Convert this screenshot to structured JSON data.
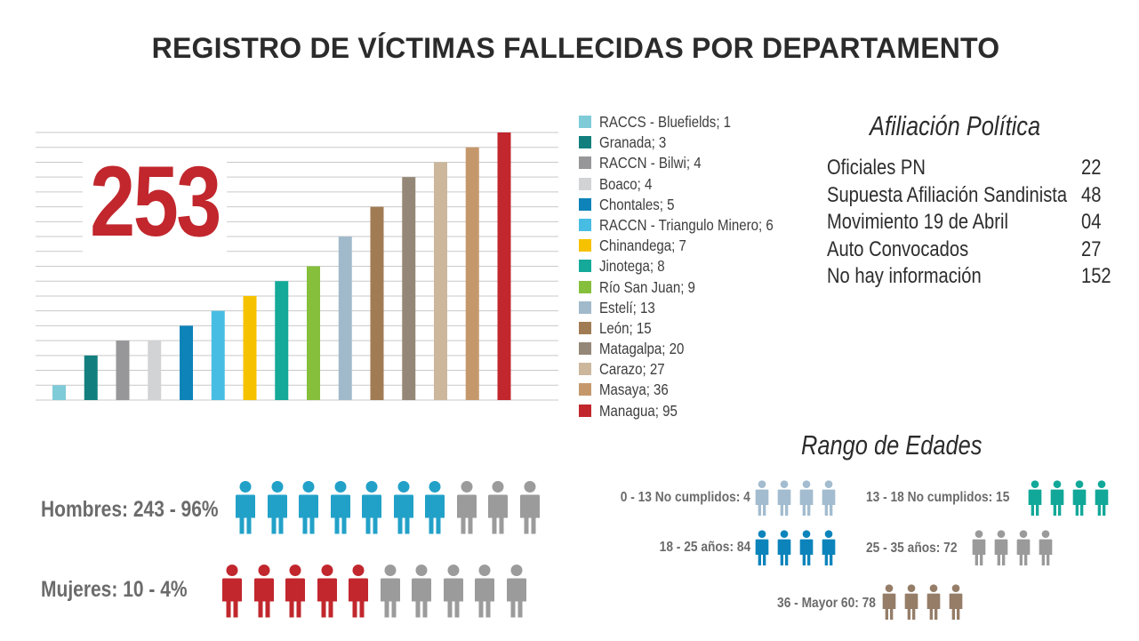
{
  "title": "REGISTRO DE VÍCTIMAS FALLECIDAS POR DEPARTAMENTO",
  "total": "253",
  "chart_data": {
    "type": "bar",
    "categories": [
      "RACCS - Bluefields",
      "Granada",
      "RACCN - Bilwi",
      "Boaco",
      "Chontales",
      "RACCN - Triangulo Minero",
      "Chinandega",
      "Jinotega",
      "Río San Juan",
      "Estelí",
      "León",
      "Matagalpa",
      "Carazo",
      "Masaya",
      "Managua"
    ],
    "values": [
      1,
      3,
      4,
      4,
      5,
      6,
      7,
      8,
      9,
      13,
      15,
      20,
      27,
      36,
      95
    ],
    "colors": [
      "#7fcbd8",
      "#127f7e",
      "#97979a",
      "#d2d3d5",
      "#0d83b9",
      "#48bde3",
      "#f6c200",
      "#14a999",
      "#86bf3c",
      "#a1bacb",
      "#a17b53",
      "#958777",
      "#ccb79d",
      "#c5986b",
      "#c1272d"
    ],
    "legend": [
      "RACCS - Bluefields; 1",
      "Granada; 3",
      "RACCN - Bilwi; 4",
      "Boaco; 4",
      "Chontales; 5",
      "RACCN - Triangulo Minero; 6",
      "Chinandega; 7",
      "Jinotega; 8",
      "Río San Juan; 9",
      "Estelí; 13",
      "León; 15",
      "Matagalpa; 20",
      "Carazo; 27",
      "Masaya; 36",
      "Managua; 95"
    ],
    "legend_position": "right",
    "grid": true,
    "xlabel": "",
    "ylabel": ""
  },
  "affiliation": {
    "title": "Afiliación Política",
    "rows": [
      {
        "name": "Oficiales PN",
        "value": "22"
      },
      {
        "name": "Supuesta Afiliación Sandinista",
        "value": "48"
      },
      {
        "name": "Movimiento 19 de Abril",
        "value": "04"
      },
      {
        "name": "Auto Convocados",
        "value": "27"
      },
      {
        "name": "No hay información",
        "value": "152"
      }
    ]
  },
  "gender": {
    "men": {
      "label": "Hombres: 243 - 96%",
      "filled": 7,
      "total": 10,
      "color": "#22a1c8"
    },
    "women": {
      "label": "Mujeres: 10 - 4%",
      "filled": 5,
      "total": 10,
      "color": "#c1272d"
    },
    "neutral_color": "#9b9b9b"
  },
  "ages": {
    "title": "Rango de Edades",
    "groups": [
      {
        "label": "0 - 13 No cumplidos: 4",
        "color": "#a3bccf",
        "icons": 4
      },
      {
        "label": "13 - 18 No cumplidos: 15",
        "color": "#12a899",
        "icons": 4
      },
      {
        "label": "18 - 25 años: 84",
        "color": "#0c84bb",
        "icons": 4
      },
      {
        "label": "25 - 35 años: 72",
        "color": "#9a9a9a",
        "icons": 4
      },
      {
        "label": "36 - Mayor 60: 78",
        "color": "#957d68",
        "icons": 4
      }
    ]
  }
}
